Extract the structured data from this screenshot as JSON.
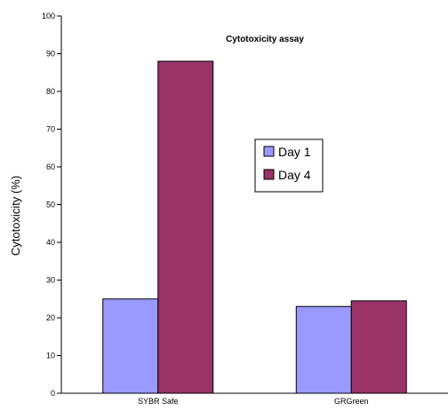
{
  "chart_data": {
    "type": "bar",
    "title": "Cytotoxicity assay",
    "xlabel": "",
    "ylabel": "Cytotoxicity (%)",
    "ylim": [
      0,
      100
    ],
    "yticks": [
      0,
      10,
      20,
      30,
      40,
      50,
      60,
      70,
      80,
      90,
      100
    ],
    "categories": [
      "SYBR Safe",
      "GRGreen"
    ],
    "series": [
      {
        "name": "Day 1",
        "values": [
          25,
          23
        ],
        "color": "#9999ff"
      },
      {
        "name": "Day 4",
        "values": [
          88,
          24.5
        ],
        "color": "#993366"
      }
    ],
    "grid": false,
    "legend_position": "center-right"
  }
}
